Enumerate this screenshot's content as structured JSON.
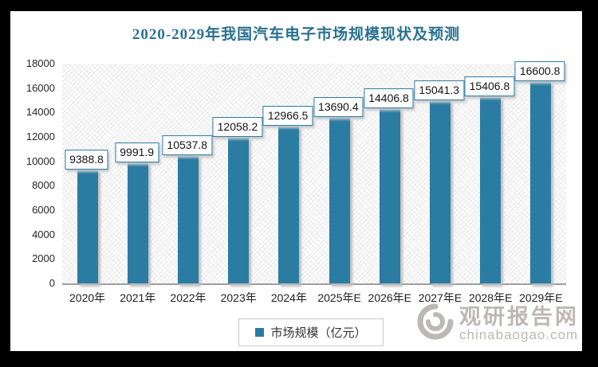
{
  "chart_data": {
    "type": "bar",
    "title": "2020-2029年我国汽车电子市场规模现状及预测",
    "categories": [
      "2020年",
      "2021年",
      "2022年",
      "2023年",
      "2024年",
      "2025年E",
      "2026年E",
      "2027年E",
      "2028年E",
      "2029年E"
    ],
    "values": [
      9388.8,
      9991.9,
      10537.8,
      12058.2,
      12966.5,
      13690.4,
      14406.8,
      15041.3,
      15406.8,
      16600.8
    ],
    "value_labels": [
      "9388.8",
      "9991.9",
      "10537.8",
      "12058.2",
      "12966.5",
      "13690.4",
      "14406.8",
      "15041.3",
      "15406.8",
      "16600.8"
    ],
    "legend_label": "市场规模（亿元）",
    "xlabel": "",
    "ylabel": "",
    "ylim": [
      0,
      18000
    ],
    "ytick_step": 2000,
    "ytick_labels": [
      "18000",
      "16000",
      "14000",
      "12000",
      "10000",
      "8000",
      "6000",
      "4000",
      "2000",
      "0"
    ],
    "grid": "off",
    "legend_position": "bottom-center",
    "bar_color": "#2b7ca3",
    "label_border_color": "#2b7ca3",
    "title_color": "#2a7191"
  },
  "watermark": {
    "name": "观研报告网",
    "url": "chinabaogao.com",
    "color": "#b5b1ab"
  }
}
